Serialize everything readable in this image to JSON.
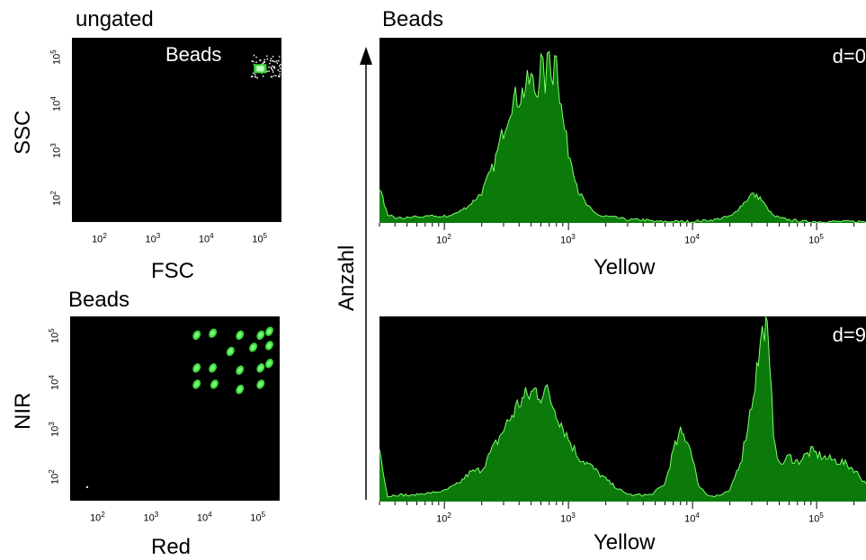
{
  "panels": {
    "ungated": {
      "title": "ungated",
      "xlabel": "FSC",
      "ylabel": "SSC",
      "gate_label": "Beads",
      "x_ticks": [
        "10",
        "10",
        "10",
        "10"
      ],
      "x_tick_exps": [
        "2",
        "3",
        "4",
        "5"
      ],
      "y_ticks": [
        "10",
        "10",
        "10",
        "10"
      ],
      "y_tick_exps": [
        "2",
        "3",
        "4",
        "5"
      ]
    },
    "beads_scatter": {
      "title": "Beads",
      "xlabel": "Red",
      "ylabel": "NIR",
      "x_ticks": [
        "10",
        "10",
        "10",
        "10"
      ],
      "x_tick_exps": [
        "2",
        "3",
        "4",
        "5"
      ],
      "y_ticks": [
        "10",
        "10",
        "10",
        "10"
      ],
      "y_tick_exps": [
        "2",
        "3",
        "4",
        "5"
      ]
    },
    "histograms": {
      "title": "Beads",
      "ylabel": "Anzahl",
      "top_label": "d=0",
      "bottom_label": "d=9",
      "xlabel_top": "Yellow",
      "xlabel_bottom": "Yellow",
      "x_ticks": [
        "10",
        "10",
        "10",
        "10"
      ],
      "x_tick_exps": [
        "2",
        "3",
        "4",
        "5"
      ]
    }
  },
  "colors": {
    "plot_bg": "#000000",
    "fill": "#0b7a0b",
    "line": "#7cff6a",
    "dot": "#3ddc3d"
  },
  "chart_data": [
    {
      "type": "scatter",
      "title": "ungated",
      "xlabel": "FSC",
      "ylabel": "SSC",
      "xscale": "log",
      "yscale": "log",
      "xlim": [
        30,
        250000
      ],
      "ylim": [
        30,
        250000
      ],
      "annotations": [
        "Beads"
      ],
      "clusters": [
        {
          "name": "Beads",
          "x_center": 100000,
          "y_center": 55000
        }
      ]
    },
    {
      "type": "scatter",
      "title": "Beads",
      "xlabel": "Red",
      "ylabel": "NIR",
      "xscale": "log",
      "yscale": "log",
      "xlim": [
        30,
        250000
      ],
      "ylim": [
        30,
        250000
      ],
      "clusters": [
        {
          "x": 7000,
          "y": 100000
        },
        {
          "x": 14000,
          "y": 110000
        },
        {
          "x": 45000,
          "y": 100000
        },
        {
          "x": 110000,
          "y": 100000
        },
        {
          "x": 160000,
          "y": 120000
        },
        {
          "x": 30000,
          "y": 45000
        },
        {
          "x": 80000,
          "y": 55000
        },
        {
          "x": 160000,
          "y": 60000
        },
        {
          "x": 7000,
          "y": 20000
        },
        {
          "x": 14000,
          "y": 20000
        },
        {
          "x": 45000,
          "y": 18000
        },
        {
          "x": 110000,
          "y": 20000
        },
        {
          "x": 160000,
          "y": 25000
        },
        {
          "x": 7000,
          "y": 9000
        },
        {
          "x": 15000,
          "y": 9000
        },
        {
          "x": 45000,
          "y": 7000
        },
        {
          "x": 110000,
          "y": 9000
        }
      ]
    },
    {
      "type": "area",
      "title": "Beads",
      "xlabel": "Yellow",
      "ylabel": "Anzahl",
      "xscale": "log",
      "xlim": [
        30,
        250000
      ],
      "ylim": [
        0,
        100
      ],
      "annotations": [
        "d=0"
      ],
      "series": [
        {
          "x": [
            30,
            35,
            40,
            50,
            60,
            80,
            100,
            130,
            160,
            200,
            250,
            300,
            350,
            400,
            450,
            500,
            550,
            600,
            650,
            700,
            750,
            800,
            850,
            900,
            1000,
            1100,
            1200,
            1400,
            1600,
            1800,
            2000,
            2500,
            3000,
            4000,
            5000,
            6000,
            8000,
            10000,
            15000,
            20000,
            25000,
            30000,
            35000,
            40000,
            45000,
            50000,
            60000,
            80000,
            100000,
            150000,
            250000
          ],
          "y": [
            20,
            4,
            2,
            2,
            3,
            4,
            3,
            6,
            10,
            17,
            32,
            52,
            68,
            70,
            75,
            80,
            72,
            88,
            78,
            95,
            82,
            100,
            70,
            58,
            40,
            30,
            18,
            10,
            6,
            4,
            3,
            2,
            1,
            1,
            0,
            0,
            0,
            0,
            1,
            3,
            10,
            16,
            14,
            8,
            4,
            2,
            1,
            0,
            0,
            0,
            0
          ]
        }
      ]
    },
    {
      "type": "area",
      "title": "Beads",
      "xlabel": "Yellow",
      "ylabel": "Anzahl",
      "xscale": "log",
      "xlim": [
        30,
        250000
      ],
      "ylim": [
        0,
        100
      ],
      "annotations": [
        "d=9"
      ],
      "series": [
        {
          "x": [
            30,
            35,
            40,
            50,
            60,
            80,
            100,
            130,
            160,
            200,
            250,
            300,
            350,
            400,
            450,
            500,
            550,
            600,
            650,
            700,
            750,
            800,
            900,
            1000,
            1200,
            1500,
            1800,
            2200,
            2800,
            3500,
            4500,
            6000,
            7000,
            8000,
            9000,
            10000,
            11000,
            13000,
            15000,
            20000,
            25000,
            30000,
            35000,
            38000,
            40000,
            42000,
            45000,
            50000,
            60000,
            70000,
            90000,
            120000,
            160000,
            200000,
            250000
          ],
          "y": [
            30,
            2,
            3,
            3,
            4,
            5,
            6,
            10,
            16,
            18,
            30,
            40,
            48,
            55,
            58,
            60,
            62,
            60,
            62,
            58,
            54,
            50,
            42,
            35,
            25,
            20,
            15,
            10,
            5,
            3,
            3,
            10,
            28,
            38,
            35,
            26,
            10,
            4,
            2,
            6,
            25,
            55,
            85,
            100,
            92,
            70,
            40,
            20,
            25,
            22,
            28,
            24,
            22,
            18,
            10
          ]
        }
      ]
    }
  ]
}
